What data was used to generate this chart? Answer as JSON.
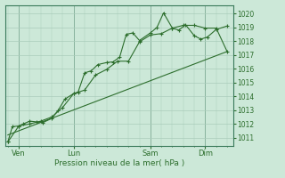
{
  "background_color": "#cce8d8",
  "grid_color": "#aaccbb",
  "line_color": "#2d6e2d",
  "marker_color": "#2d6e2d",
  "xlabel": "Pression niveau de la mer( hPa )",
  "ylim": [
    1010.4,
    1020.6
  ],
  "yticks": [
    1011,
    1012,
    1013,
    1014,
    1015,
    1016,
    1017,
    1018,
    1019,
    1020
  ],
  "day_labels": [
    "Ven",
    "Lun",
    "Sam",
    "Dim"
  ],
  "day_positions": [
    0.5,
    3.0,
    6.5,
    9.0
  ],
  "vline_positions": [
    0.5,
    3.0,
    6.5,
    9.0
  ],
  "line1_x": [
    0.0,
    0.2,
    0.5,
    0.7,
    1.0,
    1.3,
    1.6,
    2.0,
    2.3,
    2.6,
    3.0,
    3.2,
    3.5,
    3.8,
    4.1,
    4.5,
    4.8,
    5.1,
    5.4,
    5.7,
    6.0,
    6.5,
    6.8,
    7.1,
    7.5,
    7.8,
    8.1,
    8.5,
    8.8,
    9.1,
    9.5,
    10.0
  ],
  "line1_y": [
    1010.7,
    1011.8,
    1011.85,
    1012.0,
    1012.2,
    1012.15,
    1012.1,
    1012.4,
    1013.0,
    1013.8,
    1014.2,
    1014.3,
    1015.7,
    1015.85,
    1016.3,
    1016.45,
    1016.5,
    1016.85,
    1018.5,
    1018.6,
    1018.05,
    1018.6,
    1019.0,
    1020.05,
    1018.95,
    1018.8,
    1019.2,
    1018.4,
    1018.15,
    1018.3,
    1018.85,
    1019.1
  ],
  "line2_x": [
    0.0,
    0.5,
    1.0,
    1.5,
    2.0,
    2.5,
    3.0,
    3.5,
    4.0,
    4.5,
    5.0,
    5.5,
    6.0,
    6.5,
    7.0,
    7.5,
    8.0,
    8.5,
    9.0,
    9.5,
    10.0
  ],
  "line2_y": [
    1010.7,
    1011.85,
    1012.0,
    1012.2,
    1012.5,
    1013.2,
    1014.2,
    1014.45,
    1015.55,
    1015.95,
    1016.55,
    1016.55,
    1017.95,
    1018.45,
    1018.55,
    1018.95,
    1019.15,
    1019.15,
    1018.95,
    1018.95,
    1017.25
  ],
  "line3_x": [
    0.0,
    10.0
  ],
  "line3_y": [
    1011.2,
    1017.25
  ],
  "xlim": [
    -0.1,
    10.3
  ],
  "figsize": [
    3.2,
    2.0
  ],
  "dpi": 100
}
